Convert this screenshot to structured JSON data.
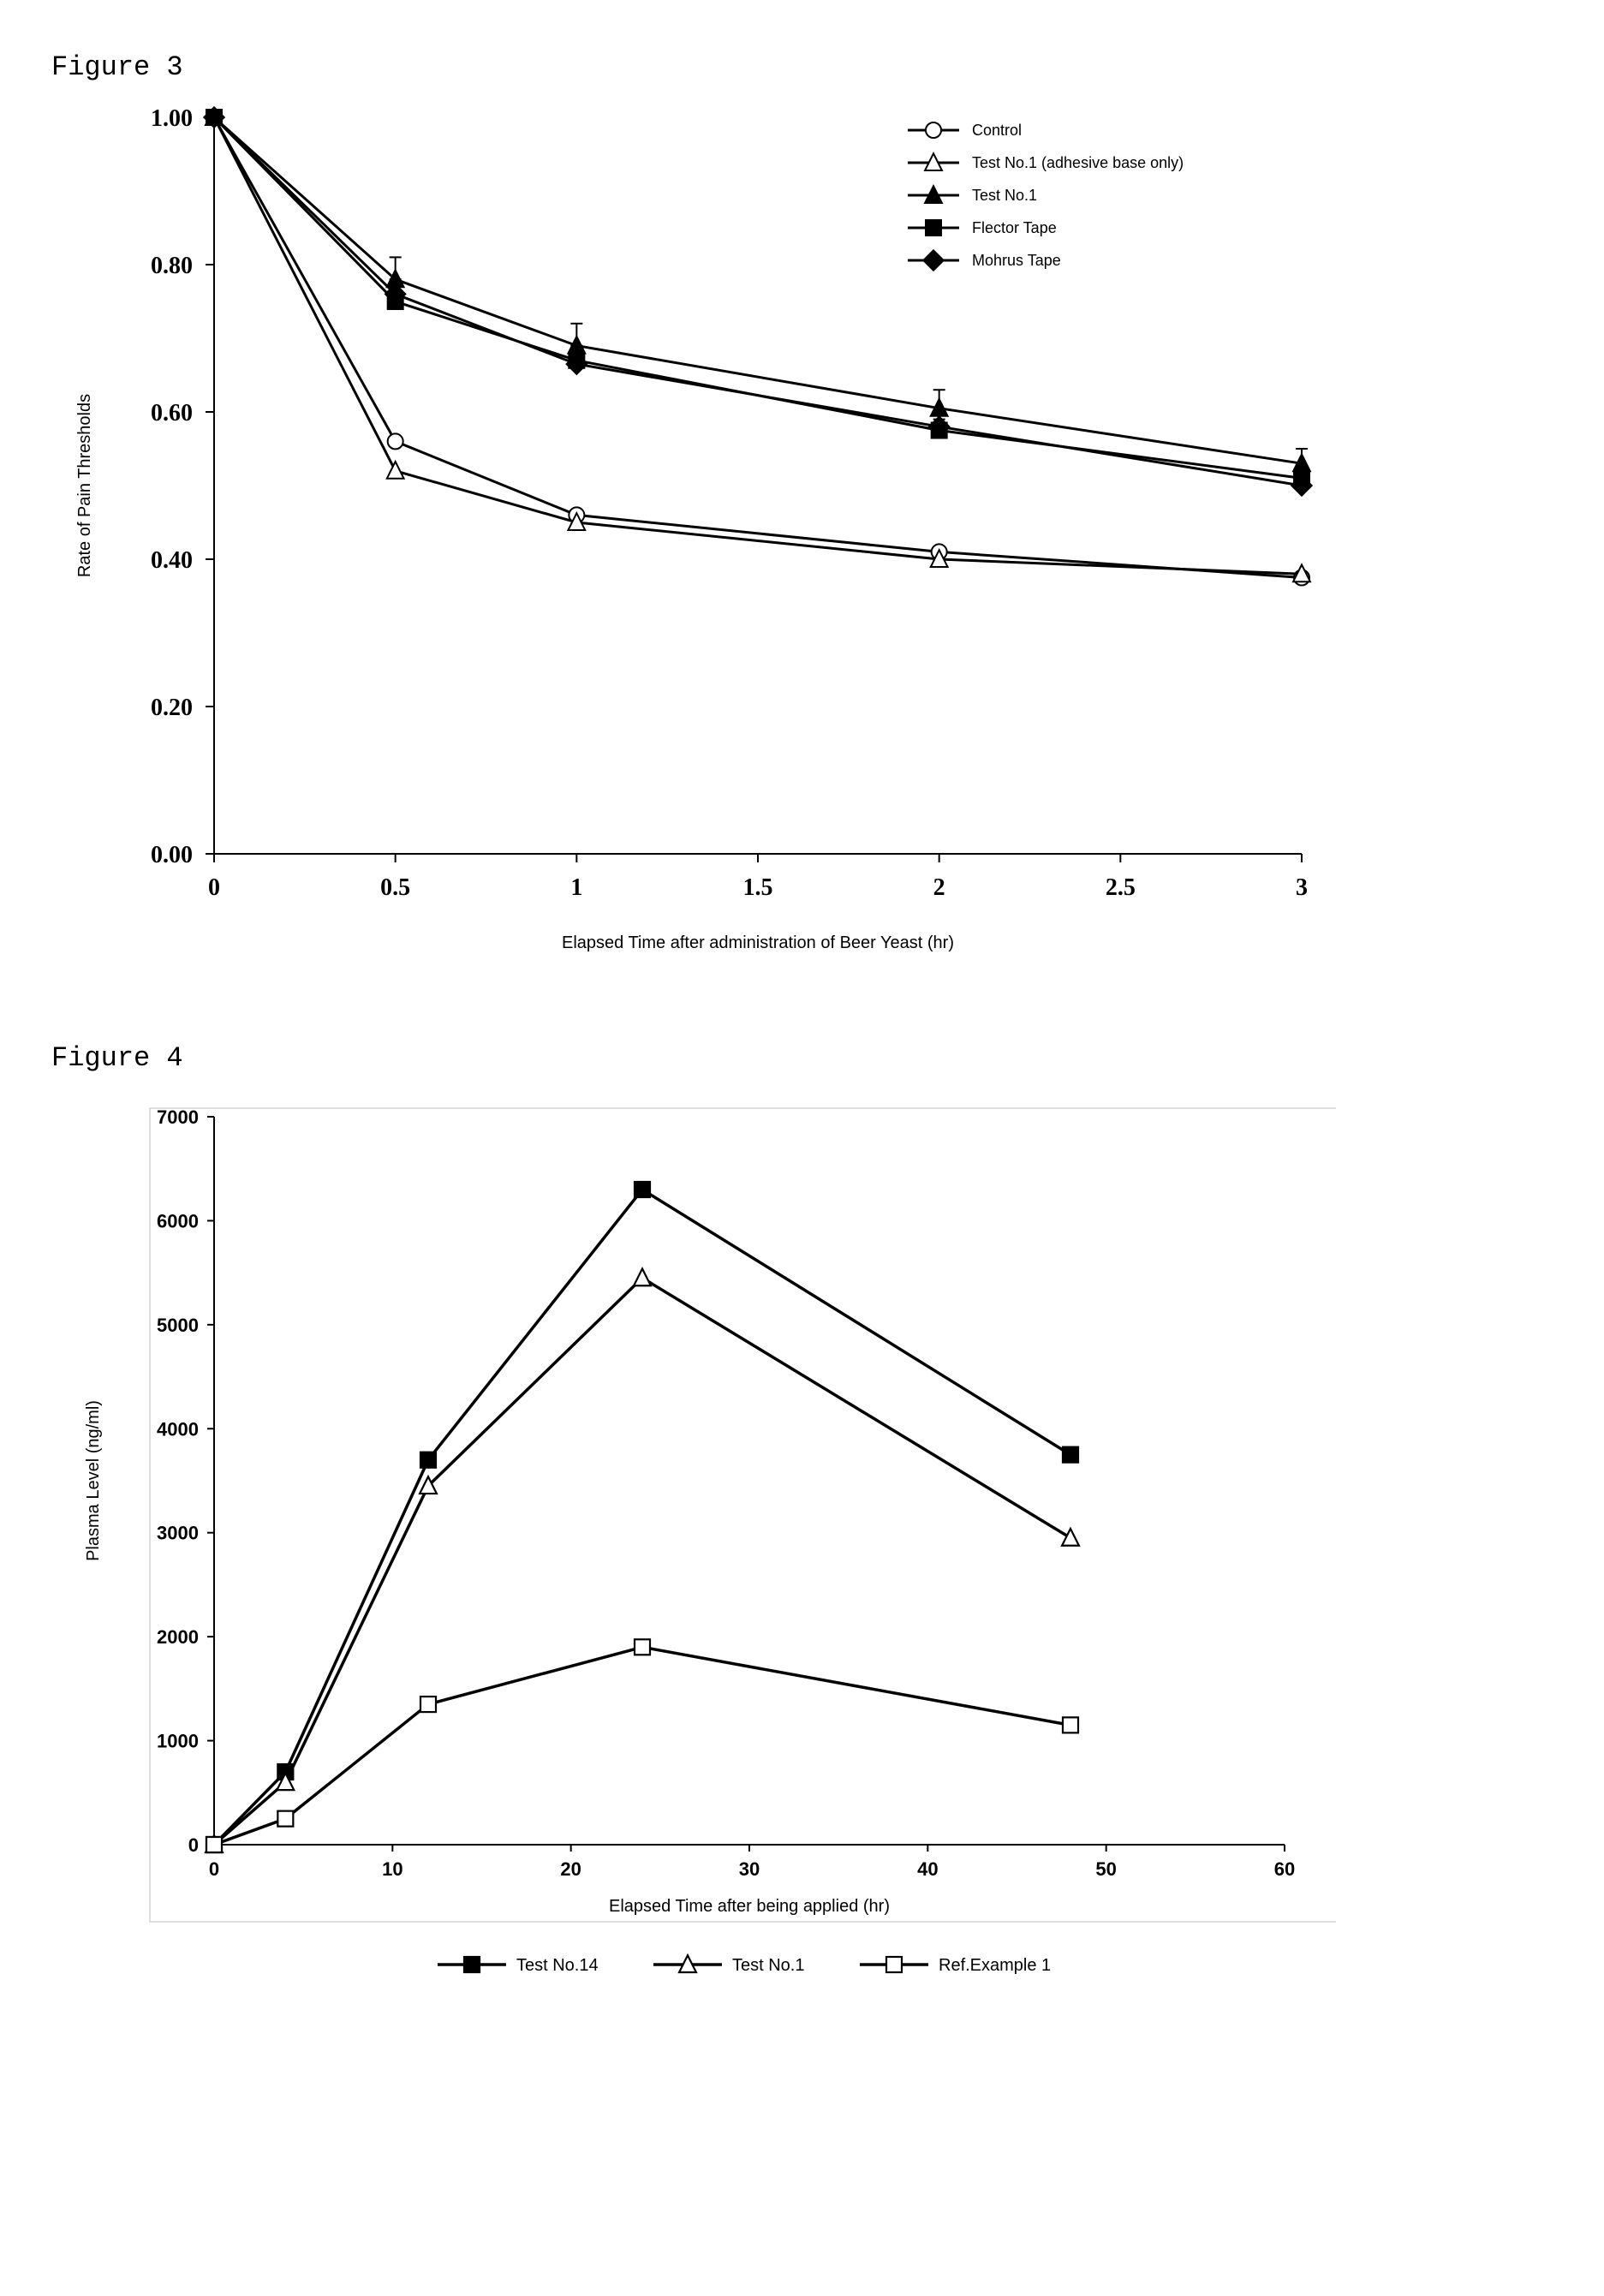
{
  "figure3": {
    "label": "Figure 3",
    "type": "line",
    "xlabel": "Elapsed Time after administration of Beer Yeast (hr)",
    "ylabel": "Rate of Pain Thresholds",
    "xlim": [
      0,
      3
    ],
    "ylim": [
      0,
      1.0
    ],
    "xticks": [
      0,
      0.5,
      1,
      1.5,
      2,
      2.5,
      3
    ],
    "xticklabels": [
      "0",
      "0.5",
      "1",
      "1.5",
      "2",
      "2.5",
      "3"
    ],
    "yticks": [
      0.0,
      0.2,
      0.4,
      0.6,
      0.8,
      1.0
    ],
    "yticklabels": [
      "0.00",
      "0.20",
      "0.40",
      "0.60",
      "0.80",
      "1.00"
    ],
    "tick_fontsize": 28,
    "tick_fontweight": "bold",
    "label_fontsize": 20,
    "line_color": "#000000",
    "line_width": 3,
    "marker_size": 9,
    "background_color": "#ffffff",
    "legend": {
      "position": "top-right",
      "fontsize": 18,
      "items": [
        {
          "label": "Control",
          "marker": "circle-open"
        },
        {
          "label": "Test No.1 (adhesive base only)",
          "marker": "triangle-open"
        },
        {
          "label": "Test No.1",
          "marker": "triangle-filled"
        },
        {
          "label": "Flector Tape",
          "marker": "square-filled"
        },
        {
          "label": "Mohrus Tape",
          "marker": "diamond-filled"
        }
      ]
    },
    "series": [
      {
        "name": "Control",
        "marker": "circle-open",
        "x": [
          0,
          0.5,
          1,
          2,
          3
        ],
        "y": [
          1.0,
          0.56,
          0.46,
          0.41,
          0.375
        ],
        "err": [
          0,
          0,
          0,
          0,
          0
        ]
      },
      {
        "name": "Test No.1 (adhesive base only)",
        "marker": "triangle-open",
        "x": [
          0,
          0.5,
          1,
          2,
          3
        ],
        "y": [
          1.0,
          0.52,
          0.45,
          0.4,
          0.38
        ],
        "err": [
          0,
          0,
          0,
          0,
          0
        ]
      },
      {
        "name": "Test No.1",
        "marker": "triangle-filled",
        "x": [
          0,
          0.5,
          1,
          2,
          3
        ],
        "y": [
          1.0,
          0.78,
          0.69,
          0.605,
          0.53
        ],
        "err": [
          0,
          0.03,
          0.03,
          0.025,
          0.02
        ]
      },
      {
        "name": "Flector Tape",
        "marker": "square-filled",
        "x": [
          0,
          0.5,
          1,
          2,
          3
        ],
        "y": [
          1.0,
          0.75,
          0.67,
          0.575,
          0.51
        ],
        "err": [
          0,
          0.025,
          0.02,
          0.015,
          0.015
        ]
      },
      {
        "name": "Mohrus Tape",
        "marker": "diamond-filled",
        "x": [
          0,
          0.5,
          1,
          2,
          3
        ],
        "y": [
          1.0,
          0.76,
          0.665,
          0.58,
          0.5
        ],
        "err": [
          0,
          0.02,
          0.02,
          0.015,
          0.015
        ]
      }
    ]
  },
  "figure4": {
    "label": "Figure 4",
    "type": "line",
    "xlabel": "Elapsed Time after being applied   (hr)",
    "ylabel": "Plasma Level  (ng/ml)",
    "xlim": [
      0,
      60
    ],
    "ylim": [
      0,
      7000
    ],
    "xticks": [
      0,
      10,
      20,
      30,
      40,
      50,
      60
    ],
    "xticklabels": [
      "0",
      "10",
      "20",
      "30",
      "40",
      "50",
      "60"
    ],
    "yticks": [
      0,
      1000,
      2000,
      3000,
      4000,
      5000,
      6000,
      7000
    ],
    "yticklabels": [
      "0",
      "1000",
      "2000",
      "3000",
      "4000",
      "5000",
      "6000",
      "7000"
    ],
    "tick_fontsize": 22,
    "tick_fontweight": "bold",
    "label_fontsize": 20,
    "line_color": "#000000",
    "line_width": 3.5,
    "marker_size": 9,
    "background_color": "#ffffff",
    "border_color": "#bdbdbd",
    "legend": {
      "position": "bottom",
      "fontsize": 20,
      "items": [
        {
          "label": "Test No.14",
          "marker": "square-filled"
        },
        {
          "label": "Test No.1",
          "marker": "triangle-open"
        },
        {
          "label": "Ref.Example 1",
          "marker": "square-open"
        }
      ]
    },
    "series": [
      {
        "name": "Test No.14",
        "marker": "square-filled",
        "x": [
          0,
          4,
          12,
          24,
          48
        ],
        "y": [
          0,
          700,
          3700,
          6300,
          3750
        ]
      },
      {
        "name": "Test No.1",
        "marker": "triangle-open",
        "x": [
          0,
          4,
          12,
          24,
          48
        ],
        "y": [
          0,
          600,
          3450,
          5450,
          2950
        ]
      },
      {
        "name": "Ref.Example 1",
        "marker": "square-open",
        "x": [
          0,
          4,
          12,
          24,
          48
        ],
        "y": [
          0,
          250,
          1350,
          1900,
          1150
        ]
      }
    ]
  }
}
